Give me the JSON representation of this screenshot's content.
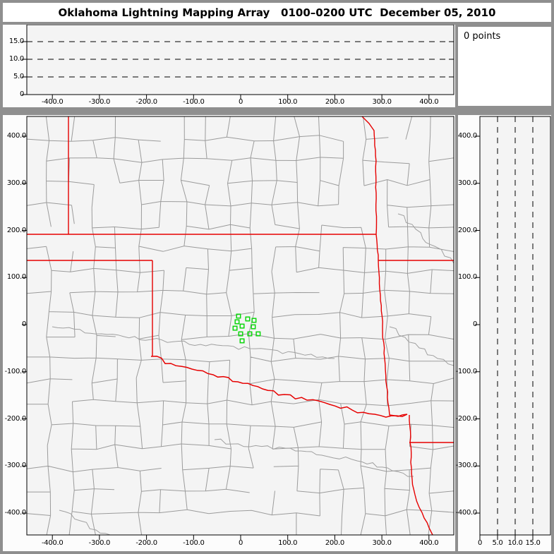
{
  "title": "Oklahoma Lightning Mapping Array   0100–0200 UTC  December 05, 2010",
  "points_panel": {
    "label": "0 points"
  },
  "colors": {
    "frame": "#8f8f8f",
    "title_bg": "#ffffff",
    "panel_bg": "#fcfcfc",
    "plot_bg": "#f4f4f4",
    "axis": "#000000",
    "county_line": "#9b9b9b",
    "river": "#a0a0a0",
    "state_border": "#e60000",
    "station": "#0cd60c",
    "text": "#000000"
  },
  "chart_data": [
    {
      "id": "altitude-vs-east-west",
      "type": "scatter",
      "title": "",
      "xlim": [
        -452,
        451
      ],
      "ylim": [
        0,
        19.8
      ],
      "x_ticks_km": [
        -400,
        -300,
        -200,
        -100,
        0,
        100,
        200,
        300,
        400
      ],
      "x_tick_labels": [
        "-400.0",
        "-300.0",
        "-200.0",
        "-100.0",
        "0",
        "100.0",
        "200.0",
        "300.0",
        "400.0"
      ],
      "y_ticks_km": [
        15,
        10,
        5,
        0
      ],
      "y_tick_labels": [
        "15.0",
        "10.0",
        "5.0",
        "0"
      ],
      "dashed_y_km": [
        5,
        10,
        15
      ],
      "points": [],
      "point_count": 0
    },
    {
      "id": "plan-view-map",
      "type": "scatter",
      "title": "",
      "xlim": [
        -452,
        451
      ],
      "ylim": [
        -446,
        442
      ],
      "x_ticks_km": [
        -400,
        -300,
        -200,
        -100,
        0,
        100,
        200,
        300,
        400
      ],
      "x_tick_labels": [
        "-400.0",
        "-300.0",
        "-200.0",
        "-100.0",
        "0",
        "100.0",
        "200.0",
        "300.0",
        "400.0"
      ],
      "y_ticks_km": [
        400,
        300,
        200,
        100,
        0,
        -100,
        -200,
        -300,
        -400
      ],
      "y_tick_labels": [
        "400.0",
        "300.0",
        "200.0",
        "100.0",
        "0",
        "-100.0",
        "-200.0",
        "-300.0",
        "-400.0"
      ],
      "stations_km": [
        [
          -4.5,
          18.0
        ],
        [
          14.9,
          12.0
        ],
        [
          28.4,
          9.0
        ],
        [
          -7.5,
          6.0
        ],
        [
          3.0,
          -3.0
        ],
        [
          -11.9,
          -7.5
        ],
        [
          26.9,
          -4.5
        ],
        [
          0.0,
          -19.5
        ],
        [
          19.4,
          -19.5
        ],
        [
          37.3,
          -19.5
        ],
        [
          3.0,
          -34.4
        ]
      ],
      "points": [],
      "point_count": 0
    },
    {
      "id": "altitude-vs-north-south",
      "type": "scatter",
      "title": "",
      "xlim": [
        0,
        20
      ],
      "ylim": [
        -446,
        442
      ],
      "x_ticks_km": [
        0,
        5,
        10,
        15
      ],
      "x_tick_labels": [
        "0",
        "5.0",
        "10.0",
        "15.0"
      ],
      "y_ticks_km": [
        400,
        300,
        200,
        100,
        0,
        -100,
        -200,
        -300,
        -400
      ],
      "y_tick_labels": [
        "400.0",
        "300.0",
        "200.0",
        "100.0",
        "0",
        "-100.0",
        "-200.0",
        "-300.0",
        "-400.0"
      ],
      "dashed_x_km": [
        5,
        10,
        15
      ],
      "points": [],
      "point_count": 0
    }
  ]
}
